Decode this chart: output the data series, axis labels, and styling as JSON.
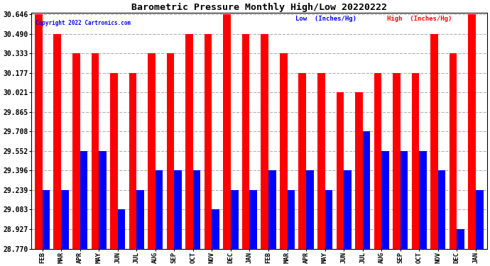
{
  "title": "Barometric Pressure Monthly High/Low 20220222",
  "copyright": "Copyright 2022 Cartronics.com",
  "legend_low": "Low  (Inches/Hg)",
  "legend_high": "High  (Inches/Hg)",
  "categories": [
    "FEB",
    "MAR",
    "APR",
    "MAY",
    "JUN",
    "JUL",
    "AUG",
    "SEP",
    "OCT",
    "NOV",
    "DEC",
    "JAN",
    "FEB",
    "MAR",
    "APR",
    "MAY",
    "JUN",
    "JUL",
    "AUG",
    "SEP",
    "OCT",
    "NOV",
    "DEC",
    "JAN"
  ],
  "high_values": [
    30.646,
    30.49,
    30.333,
    30.333,
    30.177,
    30.177,
    30.333,
    30.333,
    30.49,
    30.49,
    30.646,
    30.49,
    30.49,
    30.333,
    30.177,
    30.177,
    30.021,
    30.021,
    30.177,
    30.177,
    30.177,
    30.49,
    30.333,
    30.646
  ],
  "low_values": [
    29.239,
    29.239,
    29.552,
    29.552,
    29.083,
    29.239,
    29.396,
    29.396,
    29.396,
    29.083,
    29.239,
    29.239,
    29.396,
    29.239,
    29.396,
    29.239,
    29.396,
    29.708,
    29.552,
    29.552,
    29.552,
    29.396,
    28.927,
    29.239
  ],
  "ylim_min": 28.77,
  "ylim_max": 30.646,
  "yticks": [
    28.77,
    28.927,
    29.083,
    29.239,
    29.396,
    29.552,
    29.708,
    29.865,
    30.021,
    30.177,
    30.333,
    30.49,
    30.646
  ],
  "bar_color_high": "#ff0000",
  "bar_color_low": "#0000ff",
  "bg_color": "#ffffff",
  "grid_color": "#b0b0b0",
  "title_color": "#000000",
  "legend_low_color": "#0000ff",
  "legend_high_color": "#ff0000"
}
